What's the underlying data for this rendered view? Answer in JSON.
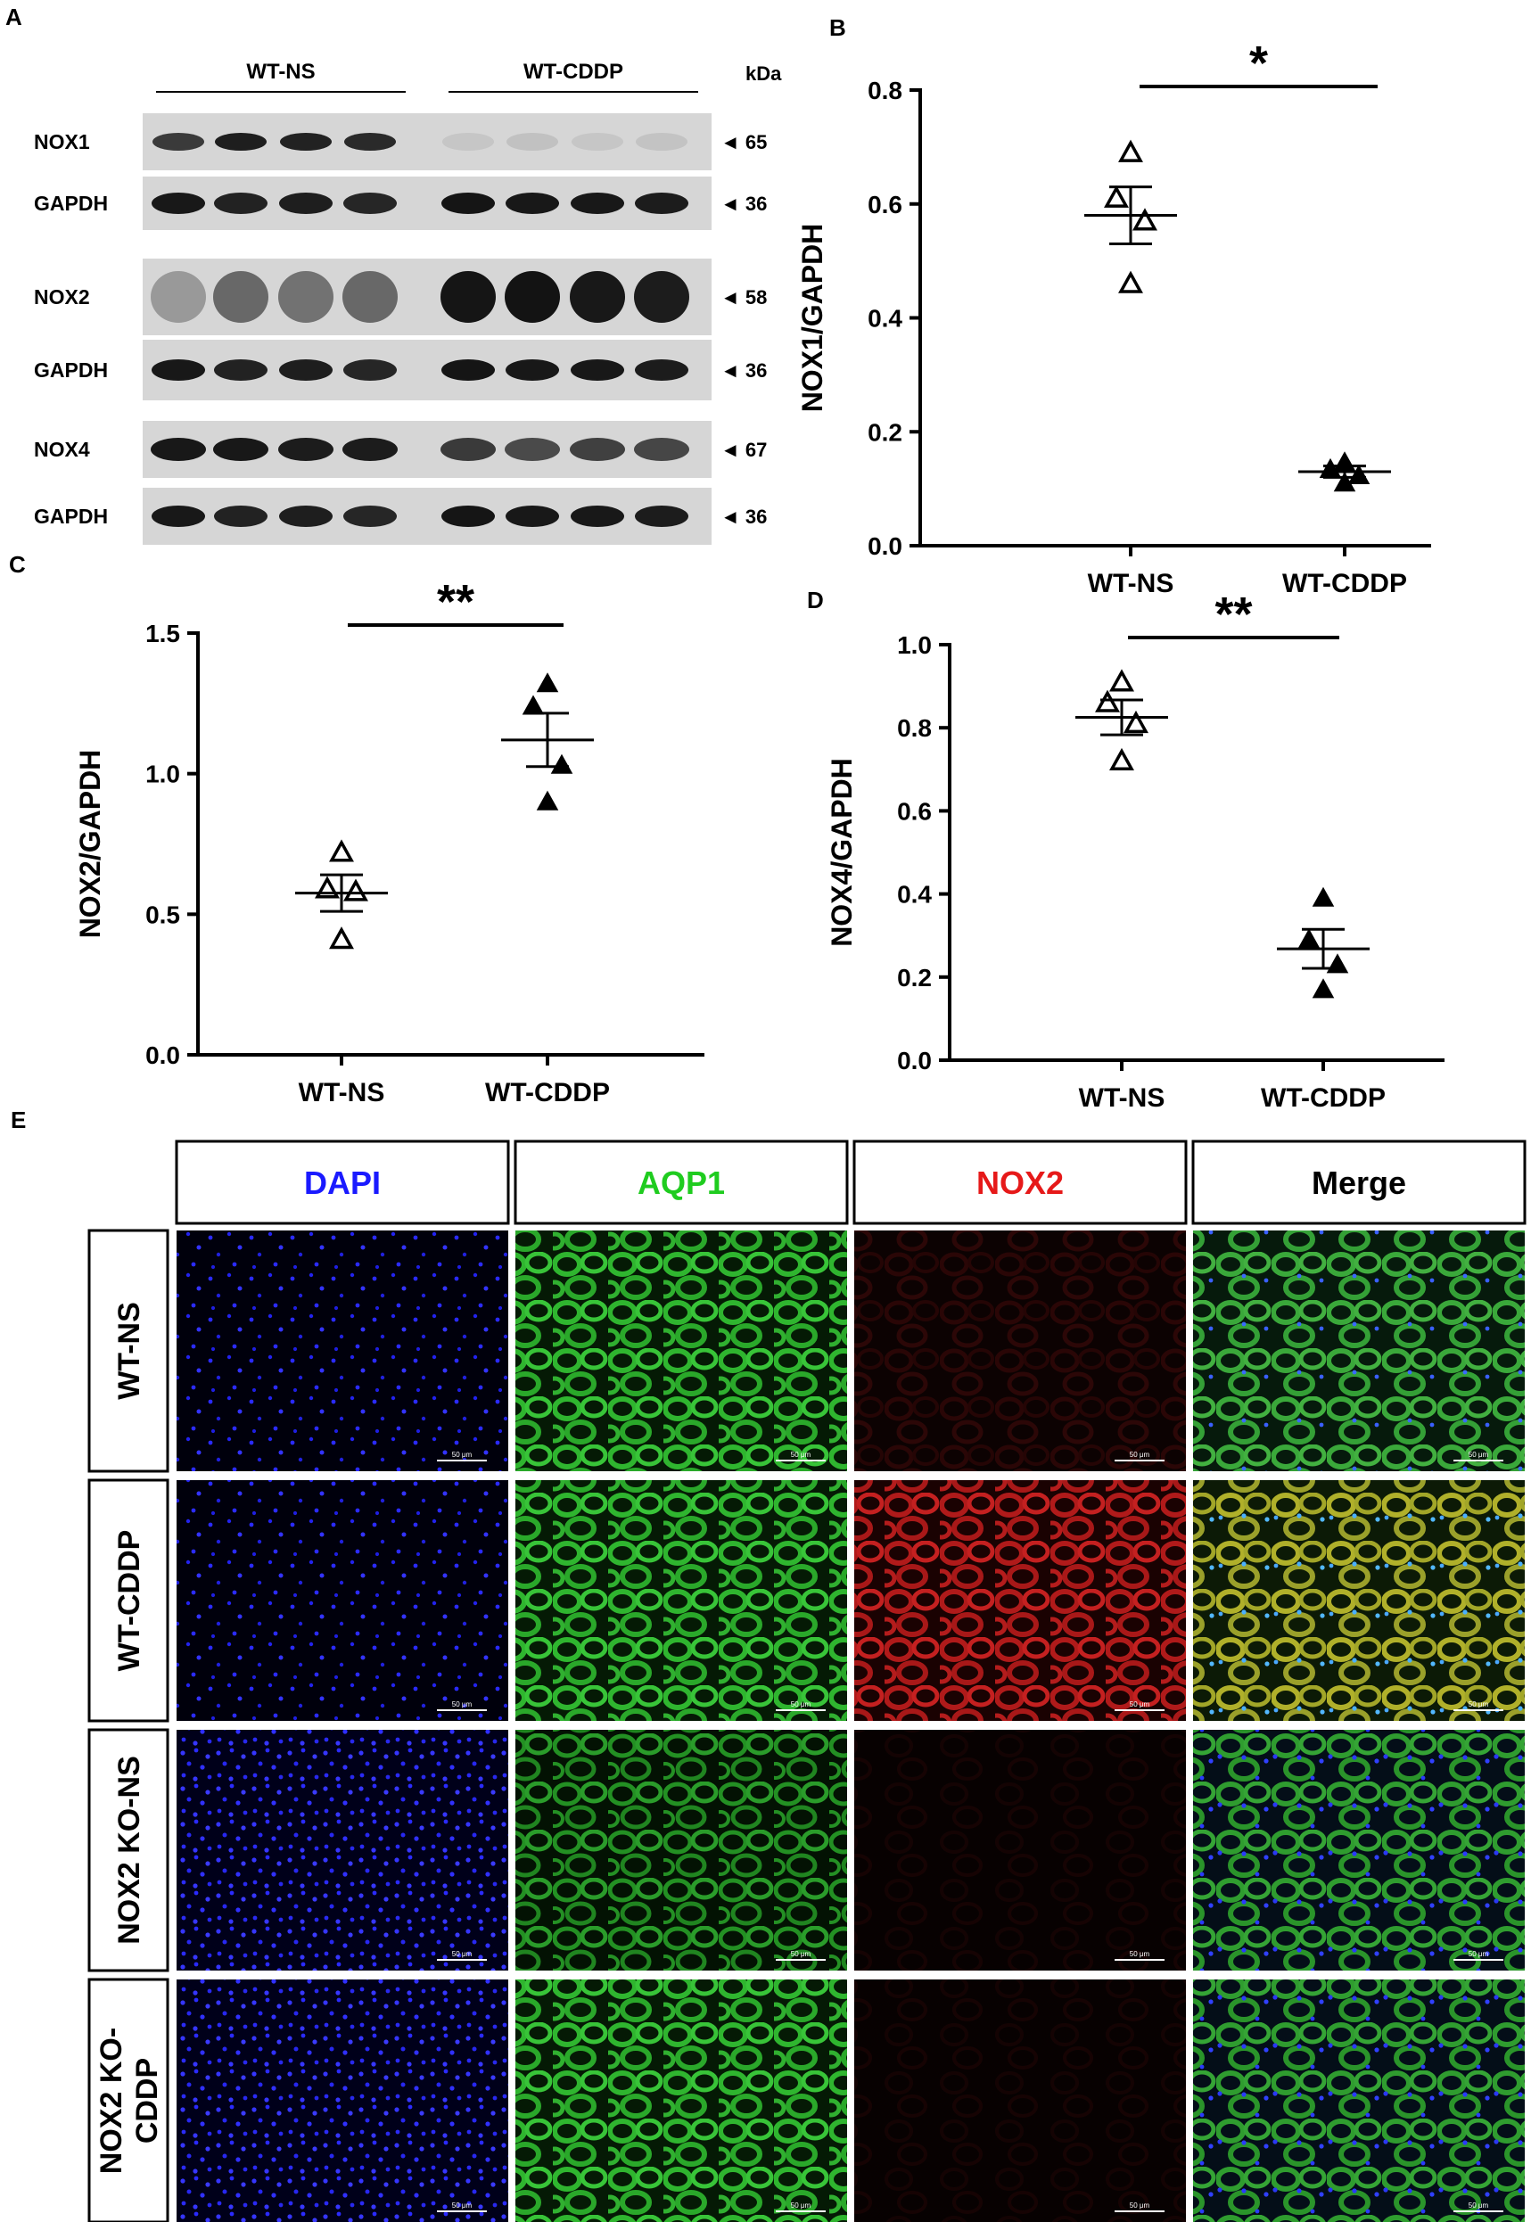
{
  "panels": {
    "a": "A",
    "b": "B",
    "c": "C",
    "d": "D",
    "e": "E"
  },
  "blot": {
    "group_left": "WT-NS",
    "group_right": "WT-CDDP",
    "kda_label": "kDa",
    "strips": [
      {
        "label": "NOX1",
        "kda": "◄ 65",
        "band": "nox1"
      },
      {
        "label": "GAPDH",
        "kda": "◄ 36",
        "band": "gapdh"
      },
      {
        "label": "NOX2",
        "kda": "◄ 58",
        "band": "nox2"
      },
      {
        "label": "GAPDH",
        "kda": "◄ 36",
        "band": "gapdh"
      },
      {
        "label": "NOX4",
        "kda": "◄ 67",
        "band": "nox4"
      },
      {
        "label": "GAPDH",
        "kda": "◄ 36",
        "band": "gapdh"
      }
    ]
  },
  "chart_data": [
    {
      "type": "scatter",
      "panel": "B",
      "ylabel": "NOX1/GAPDH",
      "categories": [
        "WT-NS",
        "WT-CDDP"
      ],
      "ylim": [
        0,
        0.8
      ],
      "yticks": [
        "0.0",
        "0.2",
        "0.4",
        "0.6",
        "0.8"
      ],
      "series": [
        {
          "category": "WT-NS",
          "marker": "open-triangle",
          "points": [
            0.69,
            0.61,
            0.57,
            0.46
          ],
          "mean": 0.58,
          "sem": 0.05
        },
        {
          "category": "WT-CDDP",
          "marker": "filled-triangle",
          "points": [
            0.146,
            0.134,
            0.123,
            0.11
          ],
          "mean": 0.13,
          "sem": 0.01
        }
      ],
      "significance": "*"
    },
    {
      "type": "scatter",
      "panel": "C",
      "ylabel": "NOX2/GAPDH",
      "categories": [
        "WT-NS",
        "WT-CDDP"
      ],
      "ylim": [
        0,
        1.5
      ],
      "yticks": [
        "0.0",
        "0.5",
        "1.0",
        "1.5"
      ],
      "series": [
        {
          "category": "WT-NS",
          "marker": "open-triangle",
          "points": [
            0.72,
            0.59,
            0.58,
            0.41
          ],
          "mean": 0.575,
          "sem": 0.065
        },
        {
          "category": "WT-CDDP",
          "marker": "filled-triangle",
          "points": [
            1.32,
            1.24,
            1.03,
            0.9
          ],
          "mean": 1.12,
          "sem": 0.095
        }
      ],
      "significance": "**"
    },
    {
      "type": "scatter",
      "panel": "D",
      "ylabel": "NOX4/GAPDH",
      "categories": [
        "WT-NS",
        "WT-CDDP"
      ],
      "ylim": [
        0,
        1.0
      ],
      "yticks": [
        "0.0",
        "0.2",
        "0.4",
        "0.6",
        "0.8",
        "1.0"
      ],
      "series": [
        {
          "category": "WT-NS",
          "marker": "open-triangle",
          "points": [
            0.91,
            0.86,
            0.81,
            0.72
          ],
          "mean": 0.825,
          "sem": 0.042
        },
        {
          "category": "WT-CDDP",
          "marker": "filled-triangle",
          "points": [
            0.39,
            0.29,
            0.23,
            0.17
          ],
          "mean": 0.268,
          "sem": 0.047
        }
      ],
      "significance": "**"
    }
  ],
  "micro": {
    "columns": [
      {
        "label": "DAPI",
        "color": "#1a1aff",
        "channel": "dapi"
      },
      {
        "label": "AQP1",
        "color": "#1fcc1f",
        "channel": "aqp1"
      },
      {
        "label": "NOX2",
        "color": "#e61919",
        "channel": "nox2"
      },
      {
        "label": "Merge",
        "color": "#000000",
        "channel": "merge"
      }
    ],
    "rows": [
      {
        "lines": [
          "WT-NS"
        ],
        "condition": "wtns"
      },
      {
        "lines": [
          "WT-CDDP"
        ],
        "condition": "wtcddp"
      },
      {
        "lines": [
          "NOX2 KO-NS"
        ],
        "condition": "kons"
      },
      {
        "lines": [
          "NOX2 KO-",
          "CDDP"
        ],
        "condition": "kocddp"
      }
    ],
    "scale_label": "50 μm"
  }
}
